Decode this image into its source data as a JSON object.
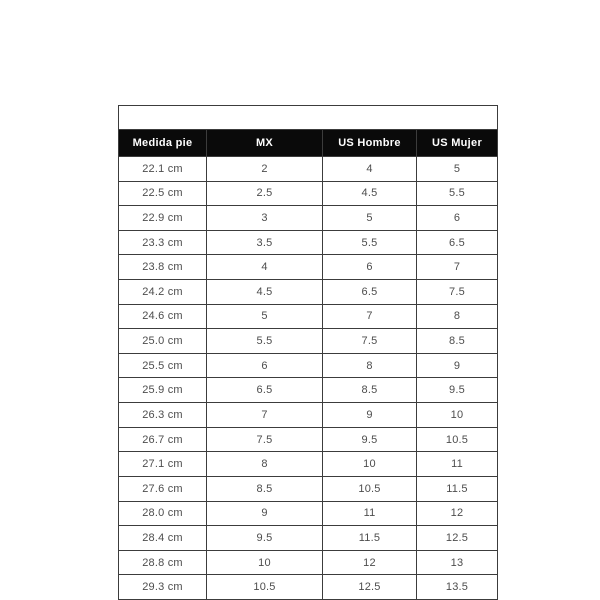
{
  "page": {
    "background_color": "#ffffff"
  },
  "colors": {
    "header_bg": "#0a0a0a",
    "header_text": "#ffffff",
    "border": "#3c3c3c",
    "cell_text": "#4d4d4d"
  },
  "chart_data": {
    "type": "table",
    "title": "",
    "columns": [
      "Medida pie",
      "MX",
      "US Hombre",
      "US Mujer"
    ],
    "rows": [
      [
        "22.1 cm",
        "2",
        "4",
        "5"
      ],
      [
        "22.5 cm",
        "2.5",
        "4.5",
        "5.5"
      ],
      [
        "22.9 cm",
        "3",
        "5",
        "6"
      ],
      [
        "23.3 cm",
        "3.5",
        "5.5",
        "6.5"
      ],
      [
        "23.8 cm",
        "4",
        "6",
        "7"
      ],
      [
        "24.2 cm",
        "4.5",
        "6.5",
        "7.5"
      ],
      [
        "24.6 cm",
        "5",
        "7",
        "8"
      ],
      [
        "25.0 cm",
        "5.5",
        "7.5",
        "8.5"
      ],
      [
        "25.5 cm",
        "6",
        "8",
        "9"
      ],
      [
        "25.9 cm",
        "6.5",
        "8.5",
        "9.5"
      ],
      [
        "26.3 cm",
        "7",
        "9",
        "10"
      ],
      [
        "26.7 cm",
        "7.5",
        "9.5",
        "10.5"
      ],
      [
        "27.1 cm",
        "8",
        "10",
        "11"
      ],
      [
        "27.6 cm",
        "8.5",
        "10.5",
        "11.5"
      ],
      [
        "28.0 cm",
        "9",
        "11",
        "12"
      ],
      [
        "28.4 cm",
        "9.5",
        "11.5",
        "12.5"
      ],
      [
        "28.8 cm",
        "10",
        "12",
        "13"
      ],
      [
        "29.3 cm",
        "10.5",
        "12.5",
        "13.5"
      ]
    ]
  }
}
